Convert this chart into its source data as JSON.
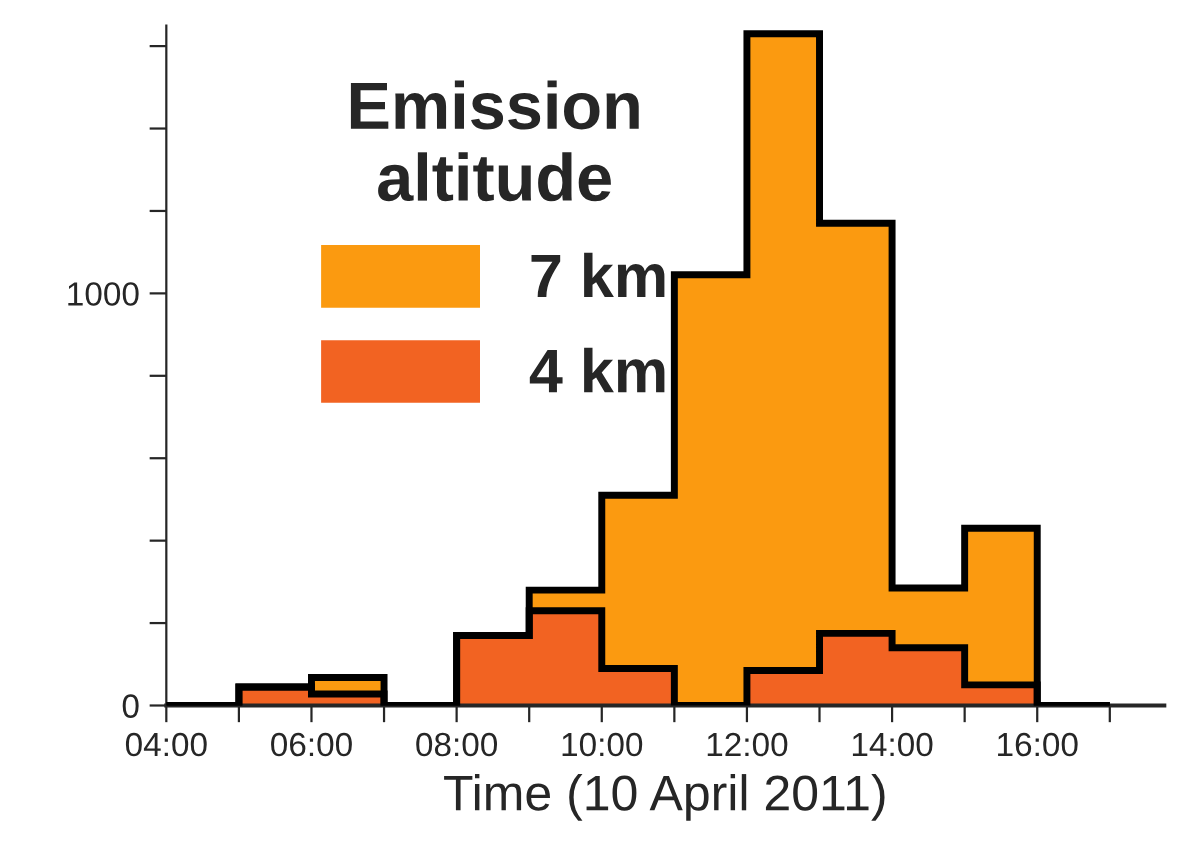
{
  "chart_data": {
    "type": "histogram",
    "xlabel": "Time (10 April 2011)",
    "legend_title": "Emission\naltitude",
    "bins": [
      4,
      5,
      6,
      7,
      8,
      9,
      10,
      11,
      12,
      13,
      14,
      15,
      16,
      17
    ],
    "series": [
      {
        "name": "7 km",
        "color": "#fb9a10",
        "values": [
          0,
          45,
          68,
          0,
          170,
          280,
          510,
          1045,
          1630,
          1170,
          285,
          430,
          0
        ]
      },
      {
        "name": "4 km",
        "color": "#f26322",
        "values": [
          0,
          45,
          28,
          0,
          170,
          230,
          90,
          0,
          85,
          175,
          140,
          50,
          0
        ]
      }
    ],
    "xlim": [
      4,
      17.75
    ],
    "xticks": [
      {
        "value": 4,
        "label": "04:00"
      },
      {
        "value": 5,
        "label": null
      },
      {
        "value": 6,
        "label": "06:00"
      },
      {
        "value": 7,
        "label": null
      },
      {
        "value": 8,
        "label": "08:00"
      },
      {
        "value": 9,
        "label": null
      },
      {
        "value": 10,
        "label": "10:00"
      },
      {
        "value": 11,
        "label": null
      },
      {
        "value": 12,
        "label": "12:00"
      },
      {
        "value": 13,
        "label": null
      },
      {
        "value": 14,
        "label": "14:00"
      },
      {
        "value": 15,
        "label": null
      },
      {
        "value": 16,
        "label": "16:00"
      },
      {
        "value": 17,
        "label": null
      }
    ],
    "ylim": [
      0,
      1650
    ],
    "yticks": [
      0,
      {
        "value": 200,
        "label": null
      },
      {
        "value": 400,
        "label": null
      },
      {
        "value": 600,
        "label": null
      },
      {
        "value": 800,
        "label": null
      },
      1000,
      {
        "value": 1200,
        "label": null
      },
      {
        "value": 1400,
        "label": null
      },
      {
        "value": 1600,
        "label": null
      }
    ],
    "grid": false,
    "legend": "top left"
  }
}
